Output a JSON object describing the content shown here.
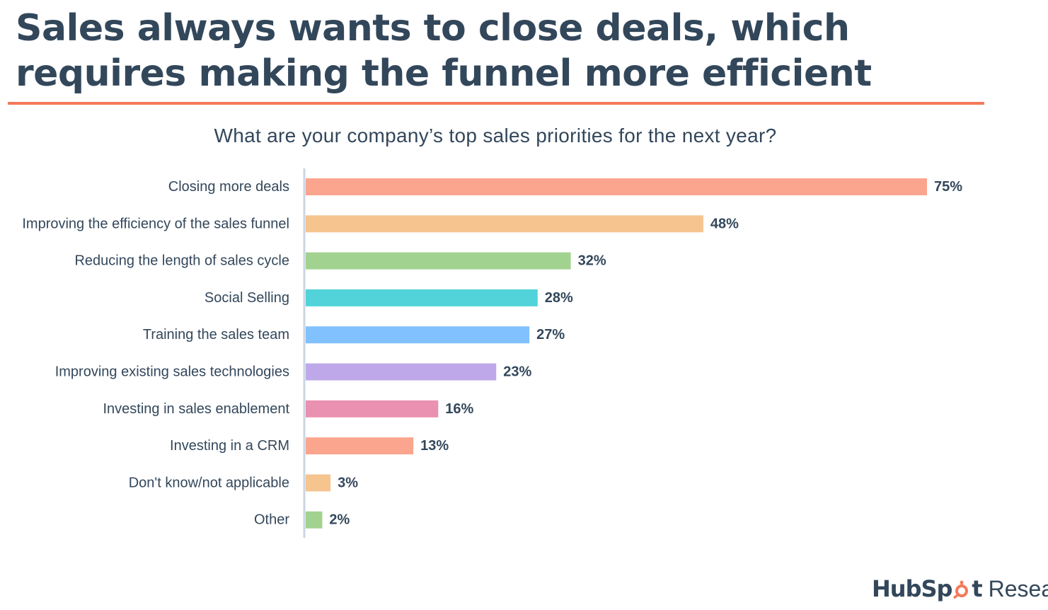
{
  "headline": "Sales always wants to close deals, which requires making the funnel more efficient",
  "colors": {
    "text": "#33475b",
    "accent": "#f47a5b",
    "axis": "#cbd6e2"
  },
  "brand": {
    "name_part1": "HubSp",
    "name_part2": "t",
    "suffix": "Research",
    "icon": "sprocket-icon"
  },
  "chart_data": {
    "type": "bar",
    "orientation": "horizontal",
    "title": "What are your company’s top sales priorities for the next year?",
    "xlabel": "",
    "ylabel": "",
    "xlim": [
      0,
      75
    ],
    "unit": "%",
    "categories": [
      "Closing more deals",
      "Improving the efficiency of the sales funnel",
      "Reducing the length of sales cycle",
      "Social Selling",
      "Training the sales team",
      "Improving existing sales technologies",
      "Investing in sales enablement",
      "Investing in a CRM",
      "Don't know/not applicable",
      "Other"
    ],
    "values": [
      75,
      48,
      32,
      28,
      27,
      23,
      16,
      13,
      3,
      2
    ],
    "value_labels": [
      "75%",
      "48%",
      "32%",
      "28%",
      "27%",
      "23%",
      "16%",
      "13%",
      "3%",
      "2%"
    ],
    "bar_colors": [
      "#fba58e",
      "#f5c48f",
      "#a2d28f",
      "#51d3d9",
      "#81c1fd",
      "#bea8ea",
      "#ea90b1",
      "#fba58e",
      "#f5c48f",
      "#a2d28f"
    ],
    "grid": false,
    "legend": "none"
  }
}
